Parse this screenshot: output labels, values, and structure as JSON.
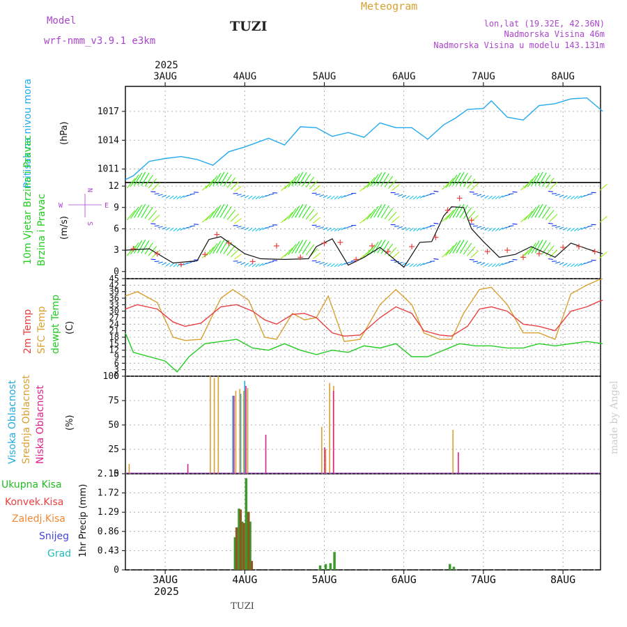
{
  "header": {
    "model_label": "Model",
    "model_name": "wrf-nmm_v3.9.1 e3km",
    "station": "TUZI",
    "title": "Meteogram",
    "coords": "lon,lat (19.32E, 42.36N)",
    "elevation": "Nadmorska Visina 46m",
    "model_elevation": "Nadmorska Visina u modelu 143.131m",
    "signature": "made by Angel",
    "bottom_station": "TUZI"
  },
  "colors": {
    "pressure": "#22aaee",
    "temp2m": "#e84040",
    "sfc_temp": "#d9a030",
    "dewpt": "#22cc22",
    "high_cloud": "#22aadd",
    "mid_cloud": "#d9a030",
    "low_cloud": "#dd2288",
    "precip_total": "#3a9a2a",
    "precip_conv": "#e84040",
    "precip_frozen": "#ee8833",
    "snow": "#4444dd",
    "graupel": "#22bbbb",
    "wind_legend": "#aa44cc"
  },
  "chart_data": [
    {
      "type": "line",
      "title": "Pritisak na nivou mora",
      "ylabel": "(hPa)",
      "ylim": [
        1009.6,
        1019.6
      ],
      "yticks": [
        1011,
        1014,
        1017
      ],
      "x_unit": "days since 2025-08-02 12:00",
      "x_categories": [
        "3AUG",
        "4AUG",
        "5AUG",
        "6AUG",
        "7AUG",
        "8AUG"
      ],
      "x_year": "2025",
      "series": [
        {
          "name": "MSLP",
          "x": [
            0,
            0.1,
            0.3,
            0.5,
            0.7,
            0.9,
            1.1,
            1.3,
            1.5,
            1.6,
            1.8,
            2.0,
            2.2,
            2.4,
            2.6,
            2.8,
            3.0,
            3.2,
            3.4,
            3.6,
            3.8,
            4.0,
            4.15,
            4.3,
            4.5,
            4.6,
            4.8,
            5.0,
            5.2,
            5.4,
            5.6,
            5.8,
            6.0
          ],
          "values": [
            1009.9,
            1010.3,
            1011.8,
            1012.1,
            1012.3,
            1012.0,
            1011.4,
            1012.8,
            1013.3,
            1013.6,
            1014.2,
            1013.5,
            1015.4,
            1015.3,
            1014.4,
            1014.8,
            1014.3,
            1015.8,
            1015.3,
            1015.3,
            1014.1,
            1015.6,
            1016.3,
            1017.2,
            1017.3,
            1018.1,
            1016.4,
            1016.1,
            1017.6,
            1017.8,
            1018.3,
            1018.4,
            1017.0
          ]
        }
      ]
    },
    {
      "type": "line",
      "title": "10m Vjetar Brzina i Pravac",
      "ylabel": "(m/s)",
      "ylim": [
        -1,
        12.5
      ],
      "yticks": [
        0,
        3,
        6,
        9,
        12
      ],
      "compass": {
        "n": "N",
        "w": "W",
        "e": "E",
        "s": "S"
      },
      "series": [
        {
          "name": "Wind speed",
          "x": [
            0,
            0.3,
            0.6,
            0.9,
            1.05,
            1.2,
            1.5,
            1.7,
            2.0,
            2.3,
            2.4,
            2.6,
            2.8,
            3.0,
            3.2,
            3.5,
            3.7,
            3.85,
            4.0,
            4.1,
            4.25,
            4.35,
            4.5,
            4.7,
            4.9,
            5.1,
            5.4,
            5.6,
            5.8,
            6.0
          ],
          "values": [
            3,
            3.2,
            1.2,
            1.5,
            4.5,
            4.9,
            2.5,
            1.8,
            1.7,
            1.8,
            3.5,
            4.6,
            0.9,
            2.0,
            3.4,
            0.6,
            4.1,
            4.2,
            7.8,
            9.1,
            9.0,
            6.0,
            4.2,
            2.0,
            2.4,
            3.5,
            2.0,
            4.0,
            3.2,
            2.5
          ]
        },
        {
          "name": "Gust markers",
          "x": [
            0.1,
            0.4,
            0.7,
            1.0,
            1.15,
            1.3,
            1.6,
            1.9,
            2.2,
            2.5,
            2.7,
            2.9,
            3.1,
            3.3,
            3.6,
            3.9,
            4.05,
            4.2,
            4.35,
            4.55,
            4.8,
            5.0,
            5.2,
            5.5,
            5.7,
            5.9
          ],
          "values": [
            3.2,
            2.5,
            1.0,
            2.4,
            5.2,
            4.0,
            1.4,
            3.6,
            2.0,
            4.0,
            4.1,
            1.7,
            3.6,
            2.8,
            3.5,
            4.8,
            8.6,
            10.3,
            7.2,
            2.8,
            3.0,
            2.0,
            2.5,
            3.4,
            3.5,
            2.8
          ]
        }
      ]
    },
    {
      "type": "line",
      "title": "2m Temp / SFC Temp / dewpt Temp",
      "ylabel": "(C)",
      "ylim": [
        0,
        45
      ],
      "yticks": [
        0,
        3,
        6,
        9,
        12,
        15,
        18,
        21,
        24,
        27,
        30,
        33,
        36,
        39,
        42,
        45
      ],
      "series": [
        {
          "name": "2m Temp",
          "x": [
            0,
            0.15,
            0.4,
            0.6,
            0.75,
            0.95,
            1.2,
            1.4,
            1.6,
            1.75,
            1.9,
            2.1,
            2.25,
            2.4,
            2.6,
            2.75,
            2.95,
            3.2,
            3.4,
            3.6,
            3.75,
            3.95,
            4.1,
            4.3,
            4.45,
            4.6,
            4.8,
            5.0,
            5.2,
            5.4,
            5.6,
            5.8,
            5.95,
            6.0
          ],
          "values": [
            31,
            33,
            31,
            25,
            23,
            24.5,
            32,
            33,
            30,
            26,
            24,
            28.5,
            29,
            27,
            20,
            18.5,
            19,
            27,
            32,
            29,
            21,
            19,
            18.5,
            23,
            31,
            32,
            30,
            24,
            23,
            21,
            30,
            32,
            34.5,
            35
          ]
        },
        {
          "name": "SFC Temp",
          "x": [
            0,
            0.15,
            0.4,
            0.6,
            0.75,
            0.95,
            1.2,
            1.35,
            1.55,
            1.75,
            1.9,
            2.1,
            2.25,
            2.4,
            2.55,
            2.75,
            2.95,
            3.2,
            3.4,
            3.6,
            3.75,
            3.95,
            4.1,
            4.25,
            4.45,
            4.6,
            4.8,
            5.0,
            5.2,
            5.4,
            5.6,
            5.8,
            5.95,
            6.0
          ],
          "values": [
            37,
            39,
            34,
            18,
            16.5,
            17,
            36,
            40,
            35,
            18,
            17,
            29,
            26,
            27,
            37,
            16,
            17,
            33,
            40,
            33,
            20,
            17,
            17,
            29,
            40,
            41,
            33,
            20,
            20,
            17,
            38,
            42,
            44.5,
            45
          ]
        },
        {
          "name": "dewpt Temp",
          "x": [
            0,
            0.1,
            0.3,
            0.5,
            0.65,
            0.8,
            1.0,
            1.2,
            1.4,
            1.6,
            1.8,
            2.0,
            2.2,
            2.4,
            2.6,
            2.8,
            3.0,
            3.2,
            3.4,
            3.6,
            3.8,
            4.0,
            4.2,
            4.4,
            4.6,
            4.8,
            5.0,
            5.2,
            5.4,
            5.6,
            5.8,
            6.0
          ],
          "values": [
            20,
            11,
            9,
            7,
            2,
            9,
            15,
            16,
            17,
            13,
            12,
            15,
            12,
            10,
            12,
            11,
            14,
            13,
            15,
            9,
            9,
            12,
            15,
            14,
            14,
            13,
            13,
            15,
            14,
            15,
            16,
            15
          ]
        }
      ]
    },
    {
      "type": "bar",
      "title": "Visoka / Srednja / Niska Oblacnost",
      "ylabel": "(%)",
      "ylim": [
        0,
        100
      ],
      "yticks": [
        0,
        25,
        50,
        75,
        100
      ],
      "series": [
        {
          "name": "Visoka Oblacnost",
          "x": [
            1.35,
            1.45,
            1.5
          ],
          "values": [
            80,
            82,
            95
          ]
        },
        {
          "name": "Srednja Oblacnost",
          "x": [
            0.03,
            1.05,
            1.1,
            1.15,
            1.37,
            1.42,
            1.47,
            1.52,
            2.45,
            2.5,
            2.55,
            2.6,
            4.1
          ],
          "values": [
            10,
            100,
            98,
            100,
            85,
            87,
            85,
            88,
            48,
            25,
            93,
            90,
            45
          ]
        },
        {
          "name": "Niska Oblacnost",
          "x": [
            0.75,
            1.33,
            1.48,
            1.73,
            2.47,
            2.58,
            4.15
          ],
          "values": [
            10,
            80,
            90,
            40,
            27,
            85,
            22
          ]
        }
      ]
    },
    {
      "type": "bar",
      "title": "1hr Precip",
      "ylabel": "1hr Precip (mm)",
      "ylim": [
        0,
        2.15
      ],
      "yticks": [
        0,
        0.43,
        0.86,
        1.29,
        1.72,
        2.15
      ],
      "legend": [
        "Ukupna Kisa",
        "Konvek.Kisa",
        "Zaledj.Kisa",
        "Snijeg",
        "Grad"
      ],
      "series": [
        {
          "name": "Ukupna Kisa",
          "x": [
            1.38,
            1.43,
            1.47,
            1.52,
            1.57,
            2.45,
            2.52,
            2.58,
            2.63,
            4.08,
            4.13
          ],
          "values": [
            0.73,
            1.37,
            1.08,
            2.05,
            1.08,
            0.1,
            0.13,
            0.15,
            0.4,
            0.13,
            0.07
          ]
        },
        {
          "name": "Konvek.Kisa",
          "x": [
            1.4,
            1.45,
            1.49,
            1.55,
            1.59
          ],
          "values": [
            0.95,
            1.35,
            1.05,
            1.3,
            0.2
          ]
        }
      ]
    }
  ]
}
